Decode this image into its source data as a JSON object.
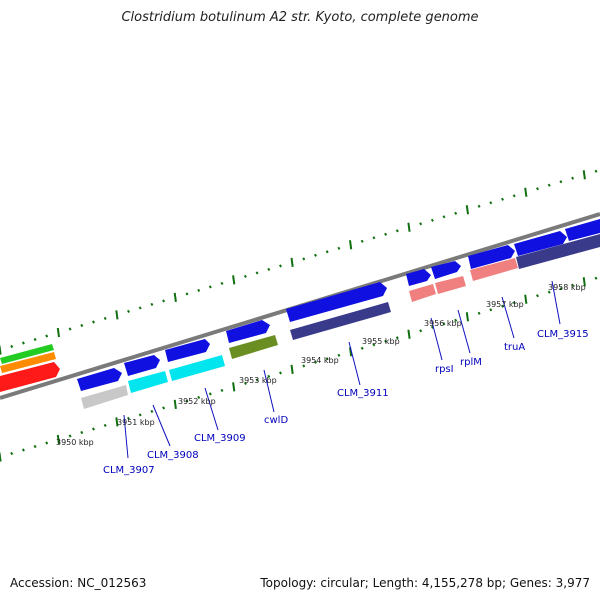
{
  "title": "Clostridium botulinum A2 str. Kyoto, complete genome",
  "footer": {
    "accession": "Accession: NC_012563",
    "summary": "Topology: circular; Length: 4,155,278 bp; Genes: 3,977"
  },
  "kbp_labels": [
    "3950 kbp",
    "3951 kbp",
    "3952 kbp",
    "3953 kbp",
    "3954 kbp",
    "3955 kbp",
    "3956 kbp",
    "3957 kbp",
    "3958 kbp"
  ],
  "gene_labels": [
    "CLM_3907",
    "CLM_3908",
    "CLM_3909",
    "cwlD",
    "CLM_3911",
    "rpsI",
    "rplM",
    "truA",
    "CLM_3915"
  ],
  "colors": {
    "cds": "#1010e0",
    "cds_dark": "#3a3a8a",
    "backbone": "#808080",
    "ticks": "#107010",
    "gene_label": "#0000bb",
    "cyan": "#00e5ee",
    "light_gray": "#c8c8c8",
    "olive": "#6b8e23",
    "salmon": "#f08080",
    "green": "#22cc22",
    "orange": "#ff8c00",
    "red": "#ff1a1a"
  }
}
